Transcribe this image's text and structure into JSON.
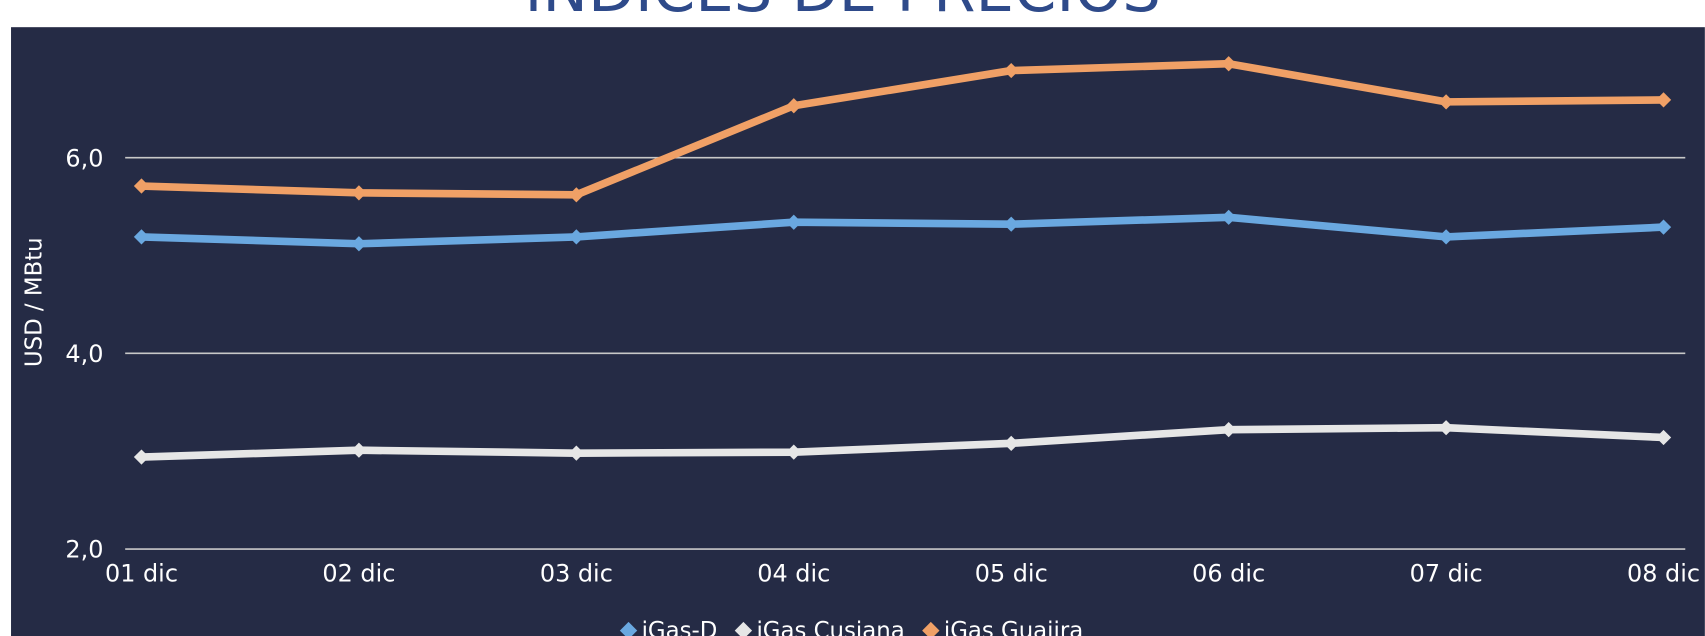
{
  "chart_data": {
    "type": "line",
    "title": "INDICES DE PRECIOS",
    "y_label": "USD / MBtu",
    "categories": [
      "01 dic",
      "02 dic",
      "03 dic",
      "04 dic",
      "05 dic",
      "06 dic",
      "07 dic",
      "08 dic"
    ],
    "series": [
      {
        "name": "iGas-D",
        "color": "#6aa8e0",
        "values": [
          5.19,
          5.12,
          5.19,
          5.34,
          5.32,
          5.39,
          5.19,
          5.29
        ]
      },
      {
        "name": "iGas Cusiana",
        "color": "#e6e6e6",
        "values": [
          2.94,
          3.01,
          2.98,
          2.99,
          3.08,
          3.22,
          3.24,
          3.14
        ]
      },
      {
        "name": "iGas Guajira",
        "color": "#f0a066",
        "values": [
          5.71,
          5.64,
          5.62,
          6.53,
          6.89,
          6.96,
          6.57,
          6.59
        ]
      }
    ],
    "ylim": [
      2,
      7
    ],
    "yticks": [
      {
        "value": 2,
        "label": "2,0"
      },
      {
        "value": 4,
        "label": "4,0"
      },
      {
        "value": 6,
        "label": "6,0"
      }
    ],
    "grid": true,
    "legend": "bottom",
    "background": "#252b45"
  }
}
